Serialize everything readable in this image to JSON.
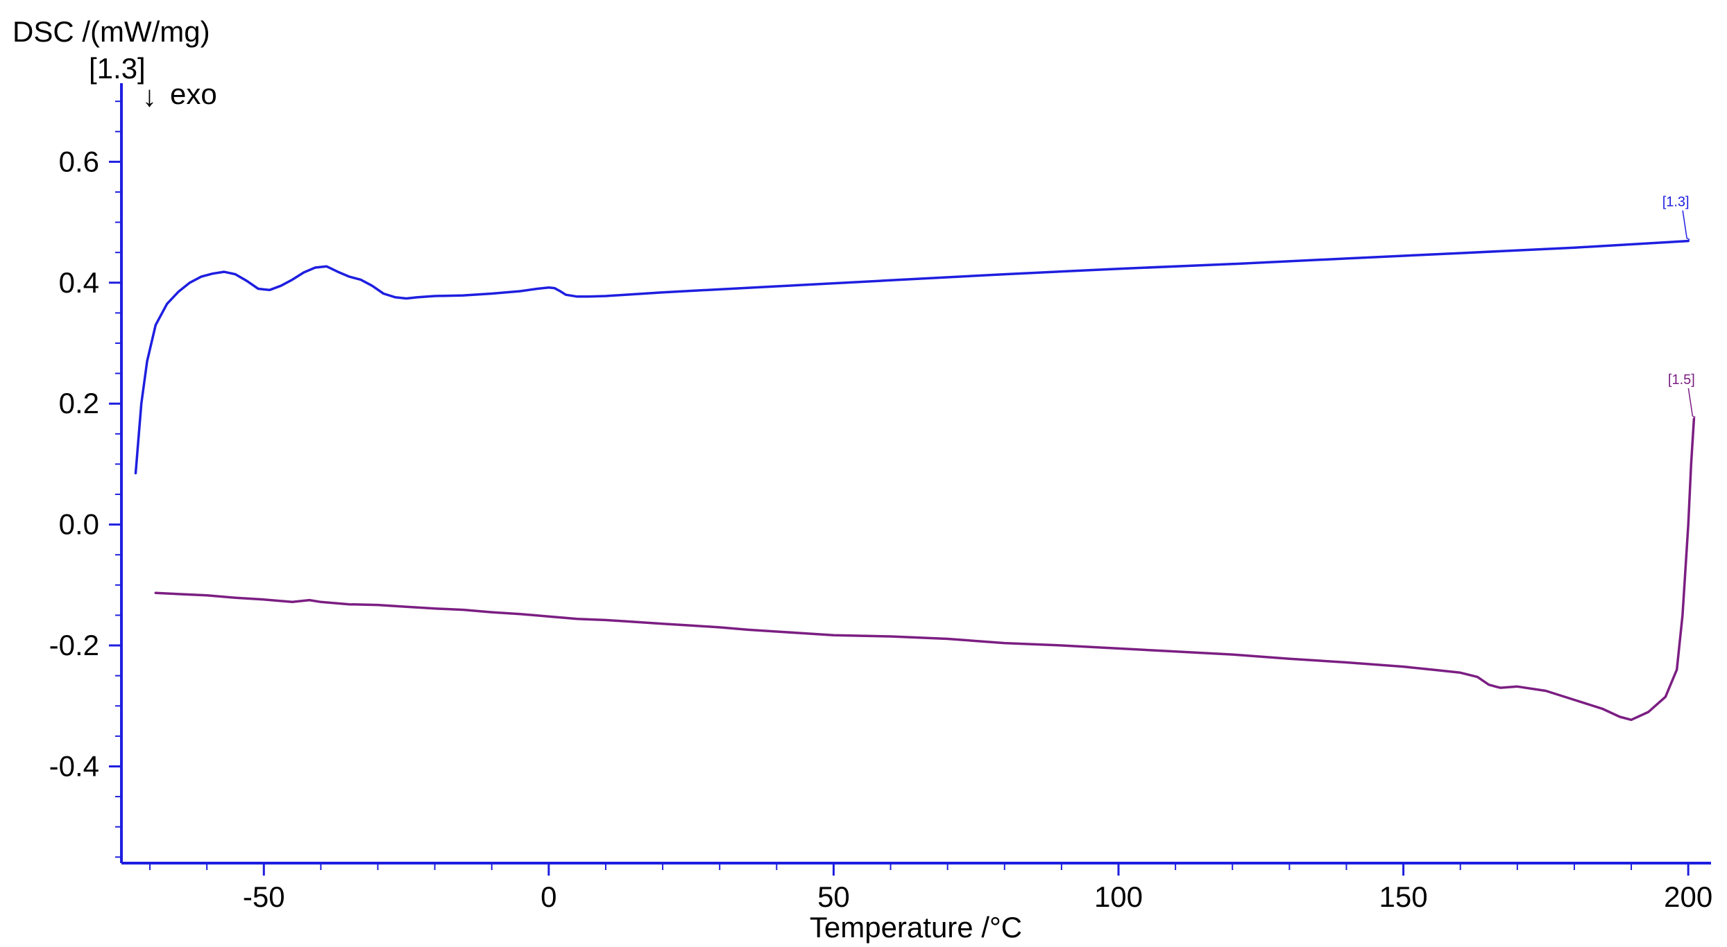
{
  "chart_data": {
    "type": "line",
    "title": "",
    "xlabel": "Temperature /°C",
    "ylabel": "DSC /(mW/mg)",
    "y_axis_segment_tag": "[1.3]",
    "exo_marker": {
      "arrow": "↓",
      "label": "exo"
    },
    "xlim": [
      -75,
      204
    ],
    "ylim": [
      -0.56,
      0.73
    ],
    "x_ticks": [
      -50,
      0,
      50,
      100,
      150,
      200
    ],
    "x_tick_labels": [
      "-50",
      "0",
      "50",
      "100",
      "150",
      "200"
    ],
    "y_ticks": [
      0.6,
      0.4,
      0.2,
      0.0,
      -0.2,
      -0.4
    ],
    "y_tick_labels": [
      "0.6",
      "0.4",
      "0.2",
      "0.0",
      "-0.2",
      "-0.4"
    ],
    "grid": false,
    "series": [
      {
        "tag": "[1.3]",
        "color": "#1e1ee0",
        "x": [
          -72.5,
          -71.5,
          -70.5,
          -69,
          -67,
          -65,
          -63,
          -61,
          -59,
          -57,
          -55,
          -53,
          -51,
          -49,
          -47,
          -45,
          -43,
          -41,
          -39,
          -37,
          -35,
          -33,
          -31,
          -29,
          -27,
          -25,
          -23,
          -20,
          -15,
          -10,
          -5,
          -2,
          0,
          1,
          2,
          3,
          5,
          7,
          10,
          20,
          40,
          60,
          80,
          100,
          120,
          140,
          160,
          180,
          200
        ],
        "y": [
          0.085,
          0.2,
          0.27,
          0.33,
          0.365,
          0.385,
          0.4,
          0.41,
          0.415,
          0.418,
          0.414,
          0.403,
          0.39,
          0.388,
          0.395,
          0.405,
          0.417,
          0.425,
          0.427,
          0.418,
          0.41,
          0.405,
          0.395,
          0.382,
          0.376,
          0.374,
          0.376,
          0.378,
          0.379,
          0.382,
          0.386,
          0.39,
          0.392,
          0.391,
          0.386,
          0.38,
          0.377,
          0.377,
          0.378,
          0.384,
          0.394,
          0.404,
          0.414,
          0.423,
          0.431,
          0.44,
          0.449,
          0.458,
          0.469
        ]
      },
      {
        "tag": "[1.5]",
        "color": "#7b1e82",
        "x": [
          -69,
          -65,
          -60,
          -55,
          -50,
          -45,
          -42,
          -40,
          -35,
          -30,
          -25,
          -20,
          -15,
          -10,
          -5,
          0,
          5,
          10,
          15,
          20,
          25,
          30,
          35,
          40,
          45,
          50,
          60,
          70,
          80,
          90,
          100,
          110,
          120,
          130,
          140,
          150,
          155,
          160,
          163,
          165,
          167,
          170,
          175,
          180,
          185,
          188,
          190,
          193,
          196,
          198,
          199,
          200,
          200.5,
          201
        ],
        "y": [
          -0.113,
          -0.115,
          -0.117,
          -0.121,
          -0.124,
          -0.128,
          -0.125,
          -0.128,
          -0.132,
          -0.133,
          -0.136,
          -0.139,
          -0.141,
          -0.145,
          -0.148,
          -0.152,
          -0.156,
          -0.158,
          -0.161,
          -0.164,
          -0.167,
          -0.17,
          -0.174,
          -0.177,
          -0.18,
          -0.183,
          -0.185,
          -0.189,
          -0.196,
          -0.2,
          -0.205,
          -0.21,
          -0.215,
          -0.222,
          -0.228,
          -0.235,
          -0.24,
          -0.245,
          -0.252,
          -0.265,
          -0.27,
          -0.268,
          -0.275,
          -0.29,
          -0.305,
          -0.318,
          -0.323,
          -0.31,
          -0.285,
          -0.24,
          -0.15,
          0.0,
          0.1,
          0.175
        ]
      }
    ]
  }
}
